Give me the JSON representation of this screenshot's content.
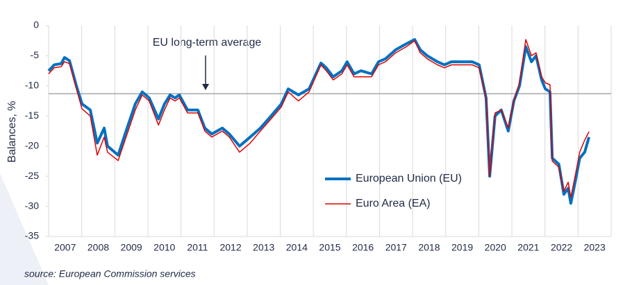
{
  "chart_data": {
    "type": "line",
    "y_label": "Balances, %",
    "annotation": "EU long-term average",
    "average": -11.3,
    "source": "source: European Commission services",
    "xlim": [
      2007,
      2024
    ],
    "xticks": [
      {
        "value": 2007.5,
        "label": "2007"
      },
      {
        "value": 2008.5,
        "label": "2008"
      },
      {
        "value": 2009.5,
        "label": "2009"
      },
      {
        "value": 2010.5,
        "label": "2010"
      },
      {
        "value": 2011.5,
        "label": "2011"
      },
      {
        "value": 2012.5,
        "label": "2012"
      },
      {
        "value": 2013.5,
        "label": "2013"
      },
      {
        "value": 2014.5,
        "label": "2014"
      },
      {
        "value": 2015.5,
        "label": "2015"
      },
      {
        "value": 2016.5,
        "label": "2016"
      },
      {
        "value": 2017.5,
        "label": "2017"
      },
      {
        "value": 2018.5,
        "label": "2018"
      },
      {
        "value": 2019.5,
        "label": "2019"
      },
      {
        "value": 2020.5,
        "label": "2020"
      },
      {
        "value": 2021.5,
        "label": "2021"
      },
      {
        "value": 2022.5,
        "label": "2022"
      },
      {
        "value": 2023.5,
        "label": "2023"
      }
    ],
    "x_grid": [
      2008,
      2009,
      2010,
      2011,
      2012,
      2013,
      2014,
      2015,
      2016,
      2017,
      2018,
      2019,
      2020,
      2021,
      2022,
      2023
    ],
    "ylim": [
      -35,
      0
    ],
    "yticks": [
      0,
      -5,
      -10,
      -15,
      -20,
      -25,
      -30,
      -35
    ],
    "x": [
      2007.0,
      2007.17,
      2007.38,
      2007.48,
      2007.63,
      2007.84,
      2008.01,
      2008.26,
      2008.47,
      2008.68,
      2008.78,
      2009.1,
      2009.31,
      2009.62,
      2009.83,
      2010.04,
      2010.32,
      2010.5,
      2010.67,
      2010.82,
      2010.95,
      2011.2,
      2011.51,
      2011.72,
      2011.93,
      2012.25,
      2012.46,
      2012.77,
      2013.09,
      2013.4,
      2013.72,
      2014.03,
      2014.24,
      2014.55,
      2014.87,
      2015.23,
      2015.39,
      2015.6,
      2015.86,
      2016.02,
      2016.23,
      2016.44,
      2016.76,
      2016.97,
      2017.18,
      2017.49,
      2017.81,
      2018.06,
      2018.23,
      2018.44,
      2018.75,
      2018.96,
      2019.17,
      2019.49,
      2019.8,
      2020.01,
      2020.22,
      2020.33,
      2020.49,
      2020.68,
      2020.89,
      2021.06,
      2021.23,
      2021.42,
      2021.59,
      2021.73,
      2021.9,
      2022.01,
      2022.15,
      2022.22,
      2022.42,
      2022.57,
      2022.7,
      2022.78,
      2022.91,
      2023.05,
      2023.2,
      2023.33
    ],
    "series": [
      {
        "name": "European Union (EU)",
        "color": "#0070c0",
        "width": 4,
        "values": [
          -7.5,
          -6.5,
          -6.3,
          -5.3,
          -5.8,
          -10,
          -13,
          -14,
          -19.5,
          -17,
          -20,
          -21.5,
          -18,
          -13,
          -11,
          -12,
          -15.5,
          -13,
          -11.5,
          -12,
          -11.5,
          -14,
          -14,
          -17,
          -18,
          -17,
          -18,
          -20,
          -18.5,
          -17,
          -15,
          -13,
          -10.5,
          -11.5,
          -10.5,
          -6.2,
          -7,
          -8.5,
          -7.5,
          -6,
          -8,
          -7.5,
          -8,
          -6,
          -5.5,
          -4,
          -3,
          -2.3,
          -4,
          -5,
          -6,
          -6.5,
          -6,
          -6,
          -6,
          -6.5,
          -12,
          -25,
          -15,
          -14,
          -17.5,
          -12.5,
          -10,
          -3.5,
          -6,
          -5,
          -9,
          -10.5,
          -11,
          -22,
          -23,
          -28,
          -27,
          -29.5,
          -26,
          -22,
          -21,
          -18.5
        ]
      },
      {
        "name": "Euro Area (EA)",
        "color": "#e00000",
        "width": 1.5,
        "values": [
          -8,
          -7,
          -6.8,
          -6,
          -6.3,
          -10.5,
          -13.8,
          -15,
          -21.5,
          -18.5,
          -21,
          -22.4,
          -19,
          -14,
          -11.5,
          -12.5,
          -16.5,
          -14,
          -12,
          -12.5,
          -12,
          -14.5,
          -14.5,
          -17.5,
          -18.5,
          -17.5,
          -18.5,
          -21,
          -19.5,
          -17.5,
          -15.5,
          -13.5,
          -11,
          -12.5,
          -11,
          -6.5,
          -7.5,
          -9,
          -8,
          -6.5,
          -8.5,
          -8.5,
          -8.5,
          -6.5,
          -6,
          -4.5,
          -3.5,
          -2.5,
          -4.5,
          -5.5,
          -6.5,
          -7,
          -6.5,
          -6.5,
          -6.5,
          -7,
          -12,
          -25,
          -14.5,
          -14,
          -17,
          -12.5,
          -9.5,
          -2.3,
          -5,
          -4.5,
          -8.5,
          -9.5,
          -9.8,
          -22.5,
          -23.5,
          -27.5,
          -26,
          -28.5,
          -25,
          -21,
          -19,
          -17.6
        ]
      }
    ]
  }
}
